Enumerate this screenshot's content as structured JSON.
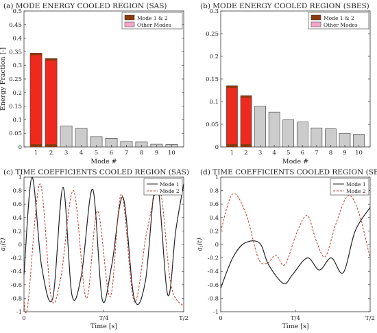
{
  "chart_data": [
    {
      "type": "bar",
      "title": "(a) MODE ENERGY COOLED REGION (SAS)",
      "xlabel": "Mode #",
      "ylabel": "Energy Fraction [-]",
      "categories": [
        "1",
        "2",
        "3",
        "4",
        "5",
        "6",
        "7",
        "8",
        "9",
        "10"
      ],
      "values": [
        0.345,
        0.325,
        0.077,
        0.068,
        0.038,
        0.032,
        0.02,
        0.018,
        0.01,
        0.009
      ],
      "highlight_count": 2,
      "ylim": [
        0,
        0.5
      ],
      "yticks": [
        0,
        0.05,
        0.1,
        0.15,
        0.2,
        0.25,
        0.3,
        0.35,
        0.4,
        0.45,
        0.5
      ],
      "legend": [
        "Mode 1 & 2",
        "Other Modes"
      ],
      "legend_position": "top-right",
      "colors": {
        "highlight": "#ee2a1e",
        "highlight_base": "#8b3a0e",
        "other": "#cccccc",
        "other_legend": "#f4a6c8"
      }
    },
    {
      "type": "bar",
      "title": "(b) MODE ENERGY COOLED REGION (SBES)",
      "xlabel": "Mode #",
      "ylabel": "",
      "categories": [
        "1",
        "2",
        "3",
        "4",
        "5",
        "6",
        "7",
        "8",
        "9",
        "10"
      ],
      "values": [
        0.135,
        0.113,
        0.09,
        0.077,
        0.06,
        0.055,
        0.042,
        0.04,
        0.03,
        0.028
      ],
      "highlight_count": 2,
      "ylim": [
        0,
        0.3
      ],
      "yticks": [
        0,
        0.05,
        0.1,
        0.15,
        0.2,
        0.25,
        0.3
      ],
      "legend": [
        "Mode 1 & 2",
        "Other Modes"
      ],
      "legend_position": "top-right",
      "colors": {
        "highlight": "#ee2a1e",
        "highlight_base": "#8b3a0e",
        "other": "#cccccc",
        "other_legend": "#f4a6c8"
      }
    },
    {
      "type": "line",
      "title": "(c) TIME COEFFICIENTS COOLED REGION (SAS)",
      "xlabel": "Time [s]",
      "ylabel": "a_i(t)",
      "xlim": [
        0,
        0.5
      ],
      "xticks": [
        0,
        0.25,
        0.5
      ],
      "xticklabels": [
        "0",
        "T/4",
        "T/2"
      ],
      "ylim": [
        -1,
        1
      ],
      "yticks": [
        -1,
        -0.8,
        -0.6,
        -0.4,
        -0.2,
        0,
        0.2,
        0.4,
        0.6,
        0.8,
        1
      ],
      "legend_position": "top-right",
      "series": [
        {
          "name": "Mode 1",
          "style": "solid",
          "color": "#222222",
          "x": [
            0,
            0.025,
            0.055,
            0.09,
            0.122,
            0.15,
            0.18,
            0.215,
            0.245,
            0.275,
            0.31,
            0.345,
            0.38,
            0.415,
            0.45,
            0.475,
            0.5
          ],
          "y": [
            -0.45,
            1.0,
            -0.32,
            -0.8,
            0.85,
            -0.75,
            -0.45,
            0.82,
            -0.82,
            -0.3,
            0.7,
            -0.8,
            -0.55,
            0.95,
            -0.75,
            0.2,
            0.9
          ]
        },
        {
          "name": "Mode 2",
          "style": "dashed",
          "color": "#c0392b",
          "x": [
            0,
            0.012,
            0.05,
            0.085,
            0.115,
            0.155,
            0.195,
            0.23,
            0.27,
            0.305,
            0.345,
            0.385,
            0.425,
            0.46,
            0.5
          ],
          "y": [
            -0.85,
            -0.9,
            0.9,
            -0.78,
            -0.5,
            0.8,
            -0.8,
            0.5,
            -0.78,
            0.75,
            -0.85,
            0.2,
            0.82,
            -0.6,
            -0.92
          ]
        }
      ]
    },
    {
      "type": "line",
      "title": "(d) TIME COEFFICIENTS COOLED REGION (SBES)",
      "xlabel": "Time [s]",
      "ylabel": "a_i(t)",
      "xlim": [
        0,
        0.5
      ],
      "xticks": [
        0,
        0.25,
        0.5
      ],
      "xticklabels": [
        "0",
        "T/4",
        "T/2"
      ],
      "ylim": [
        -1,
        1
      ],
      "yticks": [
        -1,
        -0.8,
        -0.6,
        -0.4,
        -0.2,
        0,
        0.2,
        0.4,
        0.6,
        0.8,
        1
      ],
      "legend_position": "top-right",
      "series": [
        {
          "name": "Mode 1",
          "style": "solid",
          "color": "#222222",
          "x": [
            0,
            0.04,
            0.08,
            0.13,
            0.16,
            0.21,
            0.24,
            0.29,
            0.33,
            0.37,
            0.41,
            0.45,
            0.5
          ],
          "y": [
            -0.65,
            -0.2,
            0.02,
            0.02,
            -0.3,
            -0.58,
            -0.45,
            -0.2,
            -0.38,
            -0.2,
            -0.42,
            0.2,
            0.55
          ]
        },
        {
          "name": "Mode 2",
          "style": "dashed",
          "color": "#c0392b",
          "x": [
            0,
            0.04,
            0.085,
            0.125,
            0.155,
            0.185,
            0.215,
            0.255,
            0.29,
            0.32,
            0.35,
            0.385,
            0.425,
            0.46,
            0.5
          ],
          "y": [
            0.2,
            0.75,
            0.45,
            -0.2,
            -0.28,
            -0.16,
            -0.3,
            0.18,
            0.43,
            0.05,
            -0.18,
            0.3,
            0.72,
            0.5,
            -0.2
          ]
        }
      ]
    }
  ]
}
